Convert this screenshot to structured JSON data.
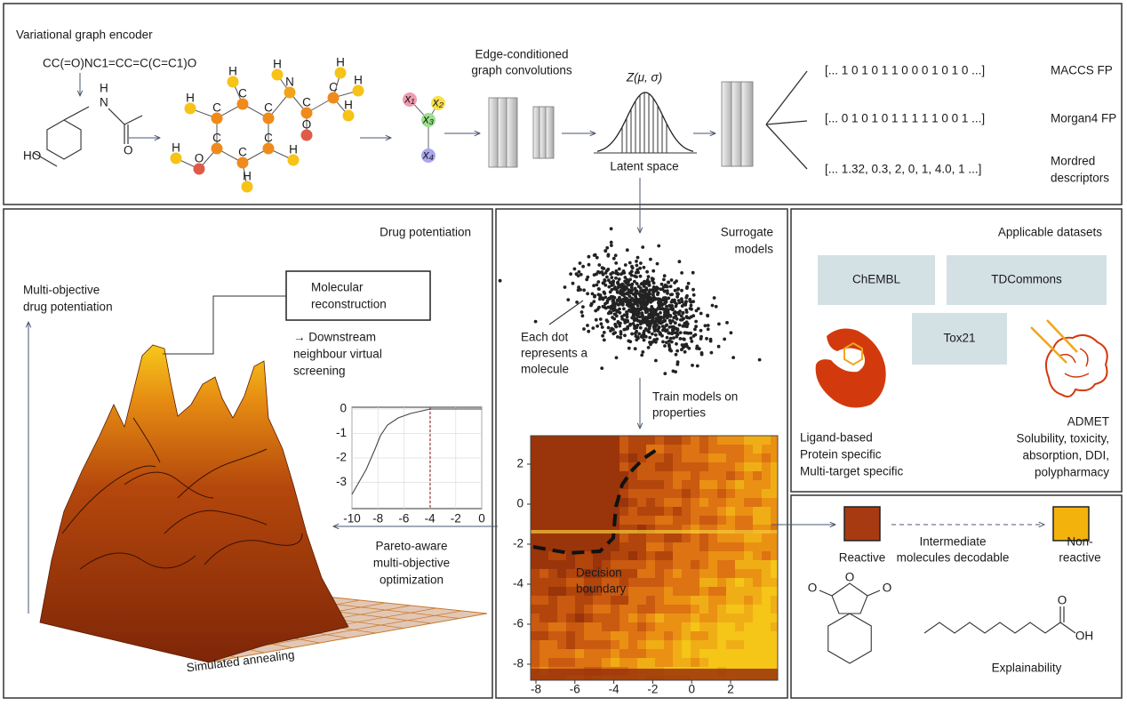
{
  "encoder": {
    "title": "Variational graph encoder",
    "smiles": "CC(=O)NC1=CC=C(C=C1)O",
    "skeletal_labels": [
      "HO",
      "N",
      "H",
      "O"
    ],
    "graph_atoms": [
      "H",
      "C",
      "C",
      "C",
      "C",
      "C",
      "C",
      "H",
      "H",
      "H",
      "O",
      "H",
      "N",
      "H",
      "C",
      "O",
      "C",
      "H",
      "H",
      "H"
    ],
    "node_labels": [
      "x₁",
      "x₂",
      "x₃",
      "x₄"
    ],
    "convolutions": [
      "Edge-conditioned",
      "graph convolutions"
    ],
    "latent_formula": "Z(μ, σ)",
    "latent_label": "Latent space",
    "outputs": [
      {
        "vector": "[... 1 0 1 0 1 1 0 0 0 1 0 1 0 ...]",
        "label": [
          "MACCS FP"
        ]
      },
      {
        "vector": "[... 0 1 0 1 0 1 1 1 1 1 0 0 1 ...]",
        "label": [
          "Morgan4 FP"
        ]
      },
      {
        "vector": "[... 1.32, 0.3, 2, 0, 1, 4.0, 1 ...]",
        "label": [
          "Mordred",
          "descriptors"
        ]
      }
    ]
  },
  "potentiation": {
    "title": "Drug potentiation",
    "axis_label": [
      "Multi-objective",
      "drug potentiation"
    ],
    "box": [
      "Molecular",
      "reconstruction"
    ],
    "downstream": [
      "→ Downstream",
      "neighbour virtual",
      "screening"
    ],
    "inset": {
      "xticks": [
        -10,
        -8,
        -6,
        -4,
        -2,
        0
      ],
      "yticks": [
        0,
        -1,
        -2,
        -3
      ]
    },
    "optimization": [
      "Pareto-aware",
      "multi-objective",
      "optimization"
    ],
    "annealing": "Simulated annealing"
  },
  "surrogate": {
    "title": [
      "Surrogate",
      "models"
    ],
    "dot_note": [
      "Each dot",
      "represents a",
      "molecule"
    ],
    "train": [
      "Train models on",
      "properties"
    ],
    "boundary": [
      "Decision",
      "boundary"
    ],
    "xticks": [
      -8,
      -6,
      -4,
      -2,
      0,
      2
    ],
    "yticks": [
      2,
      0,
      -2,
      -4,
      -6,
      -8
    ]
  },
  "datasets": {
    "title": "Applicable datasets",
    "boxes": [
      "ChEMBL",
      "TDCommons",
      "Tox21"
    ],
    "ligand": [
      "Ligand-based",
      "Protein specific",
      "Multi-target specific"
    ],
    "admet": [
      "ADMET",
      "Solubility, toxicity,",
      "absorption, DDI,",
      "polypharmacy"
    ]
  },
  "explain": {
    "reactive": "Reactive",
    "intermediate": [
      "Intermediate",
      "molecules decodable"
    ],
    "non_reactive": [
      "Non-",
      "reactive"
    ],
    "anhydride_labels": [
      "O",
      "O",
      "O"
    ],
    "acid_labels": [
      "O",
      "OH"
    ],
    "title": "Explainability"
  }
}
